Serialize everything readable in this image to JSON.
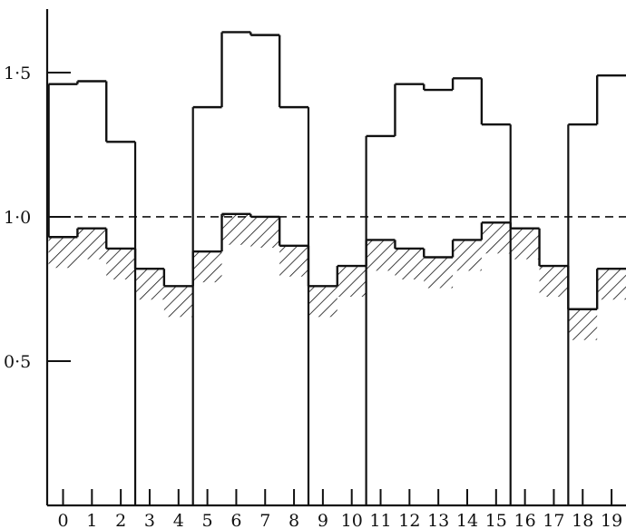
{
  "chart_data": {
    "type": "bar",
    "style": "step-histogram",
    "title": "",
    "xlabel": "",
    "ylabel": "",
    "categories": [
      "0",
      "1",
      "2",
      "3",
      "4",
      "5",
      "6",
      "7",
      "8",
      "9",
      "10",
      "11",
      "12",
      "13",
      "14",
      "15",
      "16",
      "17",
      "18",
      "19"
    ],
    "series": [
      {
        "style": "outline",
        "values": [
          1.46,
          1.47,
          1.26,
          null,
          null,
          1.38,
          1.64,
          1.63,
          1.38,
          null,
          null,
          1.28,
          1.46,
          1.44,
          1.48,
          1.32,
          null,
          null,
          1.32,
          1.49
        ]
      },
      {
        "style": "hatched",
        "values": [
          0.93,
          0.96,
          0.89,
          0.82,
          0.76,
          0.88,
          1.01,
          1.0,
          0.9,
          0.76,
          0.83,
          0.92,
          0.89,
          0.86,
          0.92,
          0.98,
          0.96,
          0.83,
          0.68,
          0.82
        ]
      }
    ],
    "group_boundaries": [
      2.5,
      4.5,
      8.5,
      10.5,
      15.5,
      17.5
    ],
    "reference_line": {
      "y": 1.0,
      "style": "dashed"
    },
    "yticks": [
      0.5,
      1.0,
      1.5
    ],
    "ytick_labels": [
      "0·5",
      "1·0",
      "1·5"
    ],
    "ylim": [
      0,
      1.72
    ],
    "xlim": [
      -0.55,
      19.5
    ],
    "grid": false,
    "legend": "none",
    "colors": {
      "ink": "#111111",
      "background": "#ffffff"
    }
  }
}
